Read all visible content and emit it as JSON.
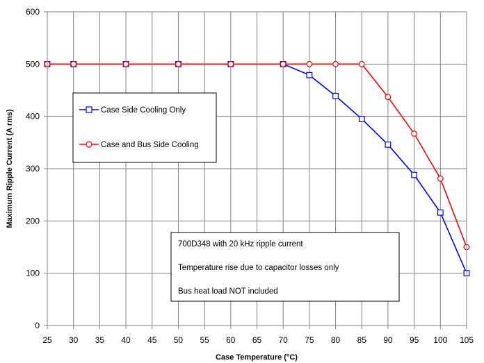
{
  "chart_data": {
    "type": "line",
    "xlabel": "Case Temperature (°C)",
    "ylabel": "Maximum Ripple Current (A rms)",
    "x_ticks": [
      25,
      30,
      35,
      40,
      45,
      50,
      55,
      60,
      65,
      70,
      75,
      80,
      85,
      90,
      95,
      100,
      105
    ],
    "y_ticks": [
      0,
      100,
      200,
      300,
      400,
      500,
      600
    ],
    "xlim": [
      25,
      105
    ],
    "ylim": [
      0,
      600
    ],
    "grid": true,
    "series": [
      {
        "name": "Case Side Cooling Only",
        "color": "#0000ff",
        "marker": "square",
        "points": [
          [
            25,
            500
          ],
          [
            30,
            500
          ],
          [
            40,
            500
          ],
          [
            50,
            500
          ],
          [
            60,
            500
          ],
          [
            70,
            500
          ],
          [
            75,
            479
          ],
          [
            80,
            439
          ],
          [
            85,
            395
          ],
          [
            90,
            346
          ],
          [
            95,
            288
          ],
          [
            100,
            216
          ],
          [
            105,
            100
          ]
        ]
      },
      {
        "name": "Case and Bus Side Cooling",
        "color": "#ff0000",
        "marker": "circle",
        "points": [
          [
            25,
            500
          ],
          [
            30,
            500
          ],
          [
            40,
            500
          ],
          [
            50,
            500
          ],
          [
            60,
            500
          ],
          [
            70,
            500
          ],
          [
            75,
            500
          ],
          [
            80,
            500
          ],
          [
            85,
            500
          ],
          [
            90,
            437
          ],
          [
            95,
            367
          ],
          [
            100,
            281
          ],
          [
            105,
            150
          ]
        ]
      }
    ],
    "legend_placement": "left",
    "annotation_lines": [
      "700D348 with 20 kHz ripple current",
      "Temperature rise due to capacitor losses only",
      "Bus heat load NOT included"
    ]
  }
}
